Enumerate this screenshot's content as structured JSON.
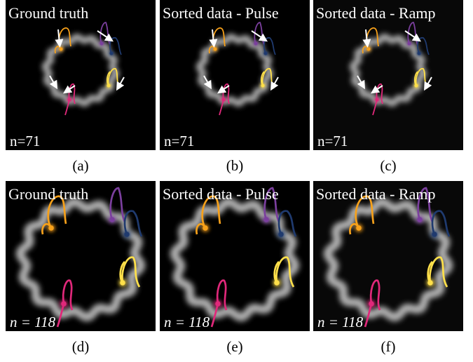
{
  "panels": [
    {
      "title": "Ground truth",
      "count": "n=71",
      "caption": "(a)"
    },
    {
      "title": "Sorted data - Pulse",
      "count": "n=71",
      "caption": "(b)"
    },
    {
      "title": "Sorted data - Ramp",
      "count": "n=71",
      "caption": "(c)"
    },
    {
      "title": "Ground truth",
      "count": "n = 118",
      "caption": "(d)"
    },
    {
      "title": "Sorted data - Pulse",
      "count": "n = 118",
      "caption": "(e)"
    },
    {
      "title": "Sorted data - Ramp",
      "count": "n = 118",
      "caption": "(f)"
    }
  ]
}
